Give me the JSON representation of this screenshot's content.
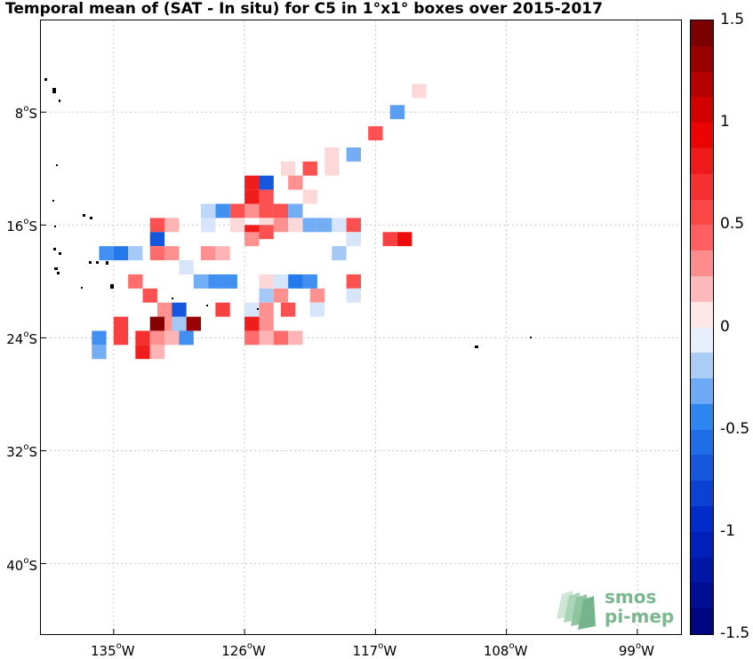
{
  "title": "Temporal mean of (SAT - In situ) for C5 in 1°x1° boxes over 2015-2017",
  "map": {
    "lat_range": [
      -45,
      -1.5
    ],
    "lon_range": [
      -140,
      -96
    ],
    "y_ticks": [
      {
        "lat": -8,
        "label": "8",
        "unit": "o",
        "hemi": "S"
      },
      {
        "lat": -16,
        "label": "16",
        "unit": "o",
        "hemi": "S"
      },
      {
        "lat": -24,
        "label": "24",
        "unit": "o",
        "hemi": "S"
      },
      {
        "lat": -32,
        "label": "32",
        "unit": "o",
        "hemi": "S"
      },
      {
        "lat": -40,
        "label": "40",
        "unit": "o",
        "hemi": "S"
      }
    ],
    "x_ticks": [
      {
        "lon": -135,
        "label": "135",
        "unit": "o",
        "hemi": "W"
      },
      {
        "lon": -126,
        "label": "126",
        "unit": "o",
        "hemi": "W"
      },
      {
        "lon": -117,
        "label": "117",
        "unit": "o",
        "hemi": "W"
      },
      {
        "lon": -108,
        "label": "108",
        "unit": "o",
        "hemi": "W"
      },
      {
        "lon": -99,
        "label": "99",
        "unit": "o",
        "hemi": "W"
      }
    ],
    "grid_color": "#c8c8c8",
    "boxes": [
      {
        "lon": -114,
        "lat": -6.5,
        "v": 0.1
      },
      {
        "lon": -115.5,
        "lat": -8,
        "v": -0.35
      },
      {
        "lon": -117,
        "lat": -9.5,
        "v": 0.5
      },
      {
        "lon": -118.5,
        "lat": -11,
        "v": -0.3
      },
      {
        "lon": -120,
        "lat": -11,
        "v": 0.1
      },
      {
        "lon": -120,
        "lat": -12,
        "v": 0.1
      },
      {
        "lon": -121.5,
        "lat": -12,
        "v": 0.5
      },
      {
        "lon": -123,
        "lat": -12,
        "v": 0.1
      },
      {
        "lon": -124.5,
        "lat": -13,
        "v": -0.7
      },
      {
        "lon": -125.5,
        "lat": -13,
        "v": 0.8
      },
      {
        "lon": -122.5,
        "lat": -13,
        "v": 0.3
      },
      {
        "lon": -121.5,
        "lat": -14,
        "v": 0.1
      },
      {
        "lon": -124.5,
        "lat": -14,
        "v": 0.5
      },
      {
        "lon": -124.5,
        "lat": -15,
        "v": 0.5
      },
      {
        "lon": -125.5,
        "lat": -14,
        "v": 0.8
      },
      {
        "lon": -125.5,
        "lat": -15,
        "v": 0.3
      },
      {
        "lon": -124.5,
        "lat": -16,
        "v": 0.1
      },
      {
        "lon": -124.5,
        "lat": -16.5,
        "v": 0.5
      },
      {
        "lon": -125.5,
        "lat": -16.5,
        "v": 0.8
      },
      {
        "lon": -126.5,
        "lat": -15,
        "v": 0.5
      },
      {
        "lon": -127.5,
        "lat": -15,
        "v": -0.4
      },
      {
        "lon": -128.5,
        "lat": -15,
        "v": -0.15
      },
      {
        "lon": -131,
        "lat": -16,
        "v": 0.2
      },
      {
        "lon": -132,
        "lat": -16,
        "v": 0.5
      },
      {
        "lon": -128.5,
        "lat": -16,
        "v": -0.1
      },
      {
        "lon": -126.5,
        "lat": -16,
        "v": 0.1
      },
      {
        "lon": -125.5,
        "lat": -17,
        "v": 0.3
      },
      {
        "lon": -123.5,
        "lat": -15,
        "v": 0.5
      },
      {
        "lon": -122.5,
        "lat": -15,
        "v": -0.3
      },
      {
        "lon": -123.5,
        "lat": -16,
        "v": 0.3
      },
      {
        "lon": -122.5,
        "lat": -16,
        "v": 0.1
      },
      {
        "lon": -121.5,
        "lat": -16,
        "v": -0.3
      },
      {
        "lon": -120.5,
        "lat": -16,
        "v": -0.3
      },
      {
        "lon": -119.5,
        "lat": -16,
        "v": -0.1
      },
      {
        "lon": -118.5,
        "lat": -16,
        "v": 0.5
      },
      {
        "lon": -118.5,
        "lat": -17,
        "v": -0.1
      },
      {
        "lon": -116,
        "lat": -17,
        "v": 0.6
      },
      {
        "lon": -115,
        "lat": -17,
        "v": 0.9
      },
      {
        "lon": -132,
        "lat": -17,
        "v": -0.7
      },
      {
        "lon": -135.5,
        "lat": -18,
        "v": -0.4
      },
      {
        "lon": -134.5,
        "lat": -18,
        "v": -0.5
      },
      {
        "lon": -133.5,
        "lat": -18,
        "v": -0.2
      },
      {
        "lon": -132,
        "lat": -18,
        "v": 0.4
      },
      {
        "lon": -131,
        "lat": -18,
        "v": 0.3
      },
      {
        "lon": -128.5,
        "lat": -18,
        "v": 0.3
      },
      {
        "lon": -127.5,
        "lat": -18,
        "v": 0.2
      },
      {
        "lon": -119.5,
        "lat": -18,
        "v": -0.2
      },
      {
        "lon": -130,
        "lat": -19,
        "v": -0.1
      },
      {
        "lon": -129,
        "lat": -20,
        "v": -0.3
      },
      {
        "lon": -128,
        "lat": -20,
        "v": -0.4
      },
      {
        "lon": -127,
        "lat": -20,
        "v": -0.4
      },
      {
        "lon": -124.5,
        "lat": -20,
        "v": 0.1
      },
      {
        "lon": -123.5,
        "lat": -20,
        "v": -0.1
      },
      {
        "lon": -122.5,
        "lat": -20,
        "v": -0.5
      },
      {
        "lon": -121.5,
        "lat": -20,
        "v": -0.4
      },
      {
        "lon": -118.5,
        "lat": -20,
        "v": 0.5
      },
      {
        "lon": -133.5,
        "lat": -20,
        "v": 0.4
      },
      {
        "lon": -124.5,
        "lat": -21,
        "v": -0.2
      },
      {
        "lon": -123.5,
        "lat": -21,
        "v": 0.3
      },
      {
        "lon": -121,
        "lat": -21,
        "v": 0.3
      },
      {
        "lon": -118.5,
        "lat": -21,
        "v": -0.1
      },
      {
        "lon": -132.5,
        "lat": -21,
        "v": 0.5
      },
      {
        "lon": -131.5,
        "lat": -22,
        "v": 0.3
      },
      {
        "lon": -130.5,
        "lat": -22,
        "v": -0.7
      },
      {
        "lon": -127.5,
        "lat": -22,
        "v": 0.6
      },
      {
        "lon": -125.5,
        "lat": -22,
        "v": -0.1
      },
      {
        "lon": -124.5,
        "lat": -22,
        "v": 0.3
      },
      {
        "lon": -123,
        "lat": -22,
        "v": 0.5
      },
      {
        "lon": -121,
        "lat": -22,
        "v": -0.1
      },
      {
        "lon": -125.5,
        "lat": -23,
        "v": 0.8
      },
      {
        "lon": -124.5,
        "lat": -23,
        "v": 0.3
      },
      {
        "lon": -132,
        "lat": -23,
        "v": 1.4
      },
      {
        "lon": -131,
        "lat": -23,
        "v": 0.3
      },
      {
        "lon": -130.5,
        "lat": -23,
        "v": -0.2
      },
      {
        "lon": -129.5,
        "lat": -23,
        "v": 1.3
      },
      {
        "lon": -134.5,
        "lat": -23,
        "v": 0.6
      },
      {
        "lon": -136,
        "lat": -24,
        "v": -0.4
      },
      {
        "lon": -134.5,
        "lat": -24,
        "v": 0.6
      },
      {
        "lon": -133,
        "lat": -24,
        "v": 0.7
      },
      {
        "lon": -132,
        "lat": -24,
        "v": 0.3
      },
      {
        "lon": -131,
        "lat": -24,
        "v": 0.2
      },
      {
        "lon": -130,
        "lat": -24,
        "v": -0.4
      },
      {
        "lon": -125.5,
        "lat": -24,
        "v": 0.4
      },
      {
        "lon": -124.5,
        "lat": -24,
        "v": 0.2
      },
      {
        "lon": -123.5,
        "lat": -24,
        "v": 0.4
      },
      {
        "lon": -122.5,
        "lat": -24,
        "v": 0.2
      },
      {
        "lon": -136,
        "lat": -25,
        "v": -0.3
      },
      {
        "lon": -133,
        "lat": -25,
        "v": 0.8
      },
      {
        "lon": -132,
        "lat": -25,
        "v": 0.2
      }
    ]
  },
  "colorbar": {
    "min": -1.5,
    "max": 1.5,
    "step": 0.125,
    "ticks": [
      {
        "v": 1.5,
        "label": "1.5"
      },
      {
        "v": 1,
        "label": "1"
      },
      {
        "v": 0.5,
        "label": "0.5"
      },
      {
        "v": 0,
        "label": "0"
      },
      {
        "v": -0.5,
        "label": "-0.5"
      },
      {
        "v": -1,
        "label": "-1"
      },
      {
        "v": -1.5,
        "label": "-1.5"
      }
    ]
  },
  "logo": {
    "line1": "smos",
    "line2": "pi-mep",
    "color": "#7cb68f"
  }
}
